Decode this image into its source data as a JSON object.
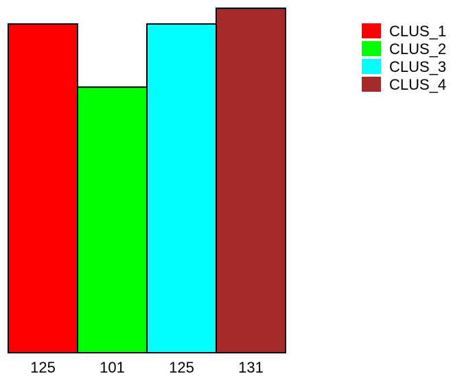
{
  "chart_data": {
    "type": "bar",
    "categories": [
      "CLUS_1",
      "CLUS_2",
      "CLUS_3",
      "CLUS_4"
    ],
    "values": [
      125,
      101,
      125,
      131
    ],
    "tick_labels": [
      "125",
      "101",
      "125",
      "131"
    ],
    "colors": [
      "#ff0000",
      "#00ff00",
      "#00ffff",
      "#a52a2a"
    ],
    "legend": [
      "CLUS_1",
      "CLUS_2",
      "CLUS_3",
      "CLUS_4"
    ],
    "legend_position": "top-right",
    "ylim": [
      0,
      131
    ],
    "grid": false,
    "title": "",
    "xlabel": "",
    "ylabel": ""
  }
}
